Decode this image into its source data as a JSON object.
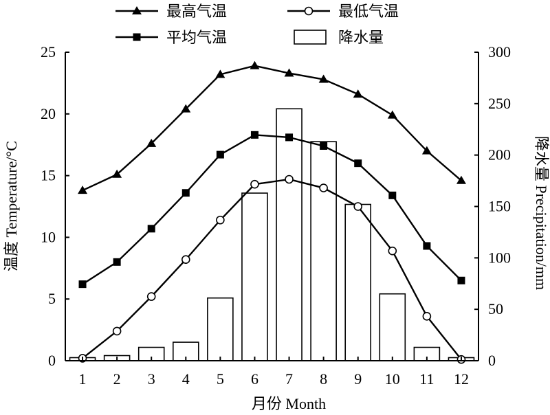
{
  "chart_data": {
    "type": "bar",
    "categories": [
      "1",
      "2",
      "3",
      "4",
      "5",
      "6",
      "7",
      "8",
      "9",
      "10",
      "11",
      "12"
    ],
    "xlabel": "月份 Month",
    "ylabel": "温度 Temperature/°C",
    "y2label": "降水量 Precipitation/mm",
    "ylim": [
      0,
      25
    ],
    "y2lim": [
      0,
      300
    ],
    "y_ticks": [
      0,
      5,
      10,
      15,
      20,
      25
    ],
    "y2_ticks": [
      0,
      50,
      100,
      150,
      200,
      250,
      300
    ],
    "grid": false,
    "legend_placement": "top",
    "series": [
      {
        "name": "降水量",
        "type": "bar",
        "axis": "right",
        "values": [
          3,
          5,
          13,
          18,
          61,
          163,
          245,
          213,
          152,
          65,
          13,
          3
        ]
      },
      {
        "name": "最高气温",
        "type": "line",
        "marker": "triangle",
        "axis": "left",
        "values": [
          13.8,
          15.1,
          17.6,
          20.4,
          23.2,
          23.9,
          23.3,
          22.8,
          21.6,
          19.9,
          17.0,
          14.6
        ]
      },
      {
        "name": "平均气温",
        "type": "line",
        "marker": "square",
        "axis": "left",
        "values": [
          6.2,
          8.0,
          10.7,
          13.6,
          16.7,
          18.3,
          18.1,
          17.4,
          16.0,
          13.4,
          9.3,
          6.5
        ]
      },
      {
        "name": "最低气温",
        "type": "line",
        "marker": "circle",
        "axis": "left",
        "values": [
          0.2,
          2.4,
          5.2,
          8.2,
          11.4,
          14.3,
          14.7,
          14.0,
          12.5,
          8.9,
          3.6,
          0.1
        ]
      }
    ]
  }
}
